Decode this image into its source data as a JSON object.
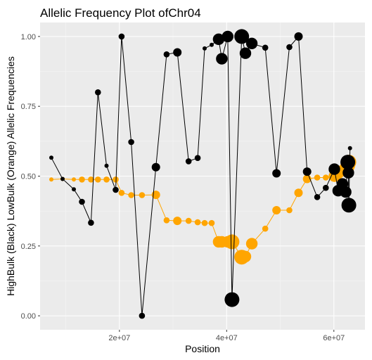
{
  "chart_data": {
    "type": "scatter",
    "title": "Allelic Frequency Plot ofChr04",
    "xlabel": "Position",
    "ylabel": "HighBulk (Black) LowBulk (Orange) Allelic Frequencies",
    "xlim": [
      5200000,
      65800000
    ],
    "ylim": [
      -0.05,
      1.05
    ],
    "x_ticks": [
      20000000,
      40000000,
      60000000
    ],
    "x_tick_labels": [
      "2e+07",
      "4e+07",
      "6e+07"
    ],
    "y_ticks": [
      0,
      0.25,
      0.5,
      0.75,
      1
    ],
    "y_tick_labels": [
      "0.00",
      "0.25",
      "0.50",
      "0.75",
      "1.00"
    ],
    "grid": true,
    "panel_color": "#ebebeb",
    "series": [
      {
        "color": "#000000",
        "points": [
          {
            "x": 7300000,
            "y": 0.566,
            "s": 1
          },
          {
            "x": 9400000,
            "y": 0.49,
            "s": 1
          },
          {
            "x": 11500000,
            "y": 0.453,
            "s": 1
          },
          {
            "x": 13000000,
            "y": 0.408,
            "s": 2
          },
          {
            "x": 14700000,
            "y": 0.333,
            "s": 2
          },
          {
            "x": 16000000,
            "y": 0.8,
            "s": 2
          },
          {
            "x": 17600000,
            "y": 0.537,
            "s": 1
          },
          {
            "x": 19300000,
            "y": 0.451,
            "s": 2
          },
          {
            "x": 20400000,
            "y": 1.0,
            "s": 2
          },
          {
            "x": 22200000,
            "y": 0.622,
            "s": 2
          },
          {
            "x": 24200000,
            "y": 0.0,
            "s": 2
          },
          {
            "x": 26800000,
            "y": 0.532,
            "s": 3
          },
          {
            "x": 28800000,
            "y": 0.936,
            "s": 2
          },
          {
            "x": 30800000,
            "y": 0.943,
            "s": 3
          },
          {
            "x": 32900000,
            "y": 0.553,
            "s": 2
          },
          {
            "x": 34600000,
            "y": 0.565,
            "s": 2
          },
          {
            "x": 35900000,
            "y": 0.957,
            "s": 1
          },
          {
            "x": 37200000,
            "y": 0.97,
            "s": 1
          },
          {
            "x": 38500000,
            "y": 0.99,
            "s": 4
          },
          {
            "x": 39100000,
            "y": 0.92,
            "s": 4
          },
          {
            "x": 40200000,
            "y": 1.0,
            "s": 4
          },
          {
            "x": 41000000,
            "y": 0.058,
            "s": 5
          },
          {
            "x": 42800000,
            "y": 1.0,
            "s": 5
          },
          {
            "x": 43500000,
            "y": 0.94,
            "s": 4
          },
          {
            "x": 44700000,
            "y": 0.975,
            "s": 4
          },
          {
            "x": 47200000,
            "y": 0.96,
            "s": 2
          },
          {
            "x": 49300000,
            "y": 0.51,
            "s": 3
          },
          {
            "x": 51700000,
            "y": 0.962,
            "s": 2
          },
          {
            "x": 53400000,
            "y": 1.0,
            "s": 3
          },
          {
            "x": 55000000,
            "y": 0.516,
            "s": 3
          },
          {
            "x": 56900000,
            "y": 0.425,
            "s": 2
          },
          {
            "x": 58500000,
            "y": 0.458,
            "s": 2
          },
          {
            "x": 60100000,
            "y": 0.525,
            "s": 4
          },
          {
            "x": 60800000,
            "y": 0.448,
            "s": 4
          },
          {
            "x": 61600000,
            "y": 0.472,
            "s": 4
          },
          {
            "x": 62200000,
            "y": 0.443,
            "s": 4
          },
          {
            "x": 62600000,
            "y": 0.55,
            "s": 5
          },
          {
            "x": 62700000,
            "y": 0.512,
            "s": 4
          },
          {
            "x": 62800000,
            "y": 0.396,
            "s": 5
          },
          {
            "x": 63000000,
            "y": 0.6,
            "s": 1
          }
        ]
      },
      {
        "color": "#ffa500",
        "points": [
          {
            "x": 7300000,
            "y": 0.488,
            "s": 1
          },
          {
            "x": 9400000,
            "y": 0.49,
            "s": 1
          },
          {
            "x": 11500000,
            "y": 0.488,
            "s": 1
          },
          {
            "x": 13000000,
            "y": 0.488,
            "s": 2
          },
          {
            "x": 14700000,
            "y": 0.488,
            "s": 2
          },
          {
            "x": 16000000,
            "y": 0.488,
            "s": 2
          },
          {
            "x": 17600000,
            "y": 0.488,
            "s": 2
          },
          {
            "x": 19300000,
            "y": 0.488,
            "s": 2
          },
          {
            "x": 20400000,
            "y": 0.44,
            "s": 2
          },
          {
            "x": 22200000,
            "y": 0.432,
            "s": 2
          },
          {
            "x": 24200000,
            "y": 0.432,
            "s": 2
          },
          {
            "x": 26800000,
            "y": 0.433,
            "s": 3
          },
          {
            "x": 28800000,
            "y": 0.342,
            "s": 2
          },
          {
            "x": 30800000,
            "y": 0.34,
            "s": 3
          },
          {
            "x": 32900000,
            "y": 0.34,
            "s": 2
          },
          {
            "x": 34600000,
            "y": 0.335,
            "s": 2
          },
          {
            "x": 35900000,
            "y": 0.332,
            "s": 2
          },
          {
            "x": 37200000,
            "y": 0.332,
            "s": 2
          },
          {
            "x": 38500000,
            "y": 0.265,
            "s": 4
          },
          {
            "x": 39100000,
            "y": 0.265,
            "s": 4
          },
          {
            "x": 40200000,
            "y": 0.265,
            "s": 4
          },
          {
            "x": 41000000,
            "y": 0.265,
            "s": 5
          },
          {
            "x": 42800000,
            "y": 0.21,
            "s": 5
          },
          {
            "x": 43500000,
            "y": 0.212,
            "s": 4
          },
          {
            "x": 44700000,
            "y": 0.258,
            "s": 4
          },
          {
            "x": 47200000,
            "y": 0.312,
            "s": 2
          },
          {
            "x": 49300000,
            "y": 0.378,
            "s": 3
          },
          {
            "x": 51700000,
            "y": 0.378,
            "s": 2
          },
          {
            "x": 53400000,
            "y": 0.44,
            "s": 3
          },
          {
            "x": 55000000,
            "y": 0.49,
            "s": 3
          },
          {
            "x": 56900000,
            "y": 0.495,
            "s": 2
          },
          {
            "x": 58500000,
            "y": 0.495,
            "s": 2
          },
          {
            "x": 60100000,
            "y": 0.5,
            "s": 4
          },
          {
            "x": 60800000,
            "y": 0.51,
            "s": 4
          },
          {
            "x": 61600000,
            "y": 0.52,
            "s": 4
          },
          {
            "x": 62200000,
            "y": 0.53,
            "s": 4
          },
          {
            "x": 62600000,
            "y": 0.54,
            "s": 5
          },
          {
            "x": 62700000,
            "y": 0.53,
            "s": 4
          },
          {
            "x": 62800000,
            "y": 0.55,
            "s": 5
          },
          {
            "x": 63000000,
            "y": 0.545,
            "s": 1
          }
        ]
      }
    ]
  }
}
